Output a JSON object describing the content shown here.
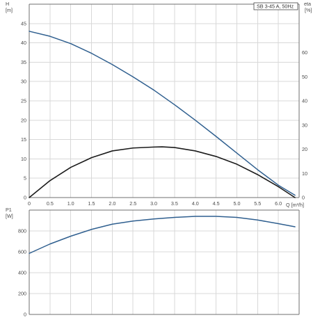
{
  "chart_data": [
    {
      "type": "line",
      "subplot": "top",
      "legend_label": "SB 3-45 A, 50Hz",
      "legend_placement": "top-right",
      "left_axis": {
        "title_line1": "H",
        "title_line2": "[m]",
        "range": [
          0,
          50
        ],
        "ticks": [
          0,
          5,
          10,
          15,
          20,
          25,
          30,
          35,
          40,
          45
        ]
      },
      "right_axis": {
        "title_line1": "eta",
        "title_line2": "[%]",
        "range": [
          0,
          80
        ],
        "ticks": [
          0,
          10,
          20,
          30,
          40,
          50,
          60
        ]
      },
      "x_axis": {
        "title": "Q [m³/h]",
        "range": [
          0,
          6.5
        ],
        "ticks": [
          0,
          0.5,
          1.0,
          1.5,
          2.0,
          2.5,
          3.0,
          3.5,
          4.0,
          4.5,
          5.0,
          5.5,
          6.0
        ],
        "tick_labels": [
          "0",
          "0.5",
          "1.0",
          "1.5",
          "2.0",
          "2.5",
          "3.0",
          "3.5",
          "4.0",
          "4.5",
          "5.0",
          "5.5",
          "6.0"
        ]
      },
      "grid": true,
      "series": [
        {
          "color": "#2f5f8f",
          "axis": "left",
          "x": [
            0.0,
            0.5,
            1.0,
            1.5,
            2.0,
            2.5,
            3.0,
            3.5,
            4.0,
            4.5,
            5.0,
            5.5,
            6.0,
            6.4
          ],
          "y": [
            43.0,
            41.7,
            39.8,
            37.3,
            34.4,
            31.2,
            27.8,
            24.0,
            20.0,
            15.8,
            11.5,
            7.2,
            3.2,
            0.6
          ]
        },
        {
          "color": "#1b1b1b",
          "axis": "right",
          "x": [
            0.0,
            0.5,
            1.0,
            1.5,
            2.0,
            2.5,
            3.0,
            3.2,
            3.5,
            4.0,
            4.5,
            5.0,
            5.5,
            6.0,
            6.4
          ],
          "y": [
            0.0,
            7.0,
            12.5,
            16.5,
            19.3,
            20.5,
            20.9,
            21.0,
            20.7,
            19.3,
            17.0,
            13.8,
            9.5,
            4.5,
            0.0
          ]
        }
      ]
    },
    {
      "type": "line",
      "subplot": "bottom",
      "left_axis": {
        "title_line1": "P1",
        "title_line2": "[W]",
        "range": [
          0,
          1000
        ],
        "ticks": [
          0,
          200,
          400,
          600,
          800
        ]
      },
      "x_axis": {
        "range": [
          0,
          6.5
        ],
        "ticks": [
          0,
          0.5,
          1.0,
          1.5,
          2.0,
          2.5,
          3.0,
          3.5,
          4.0,
          4.5,
          5.0,
          5.5,
          6.0
        ]
      },
      "grid": true,
      "series": [
        {
          "color": "#2f5f8f",
          "axis": "left",
          "x": [
            0.0,
            0.5,
            1.0,
            1.5,
            2.0,
            2.5,
            3.0,
            3.5,
            4.0,
            4.5,
            5.0,
            5.5,
            6.0,
            6.4
          ],
          "y": [
            585,
            675,
            750,
            815,
            865,
            895,
            915,
            930,
            940,
            940,
            930,
            905,
            870,
            840
          ]
        }
      ]
    }
  ]
}
